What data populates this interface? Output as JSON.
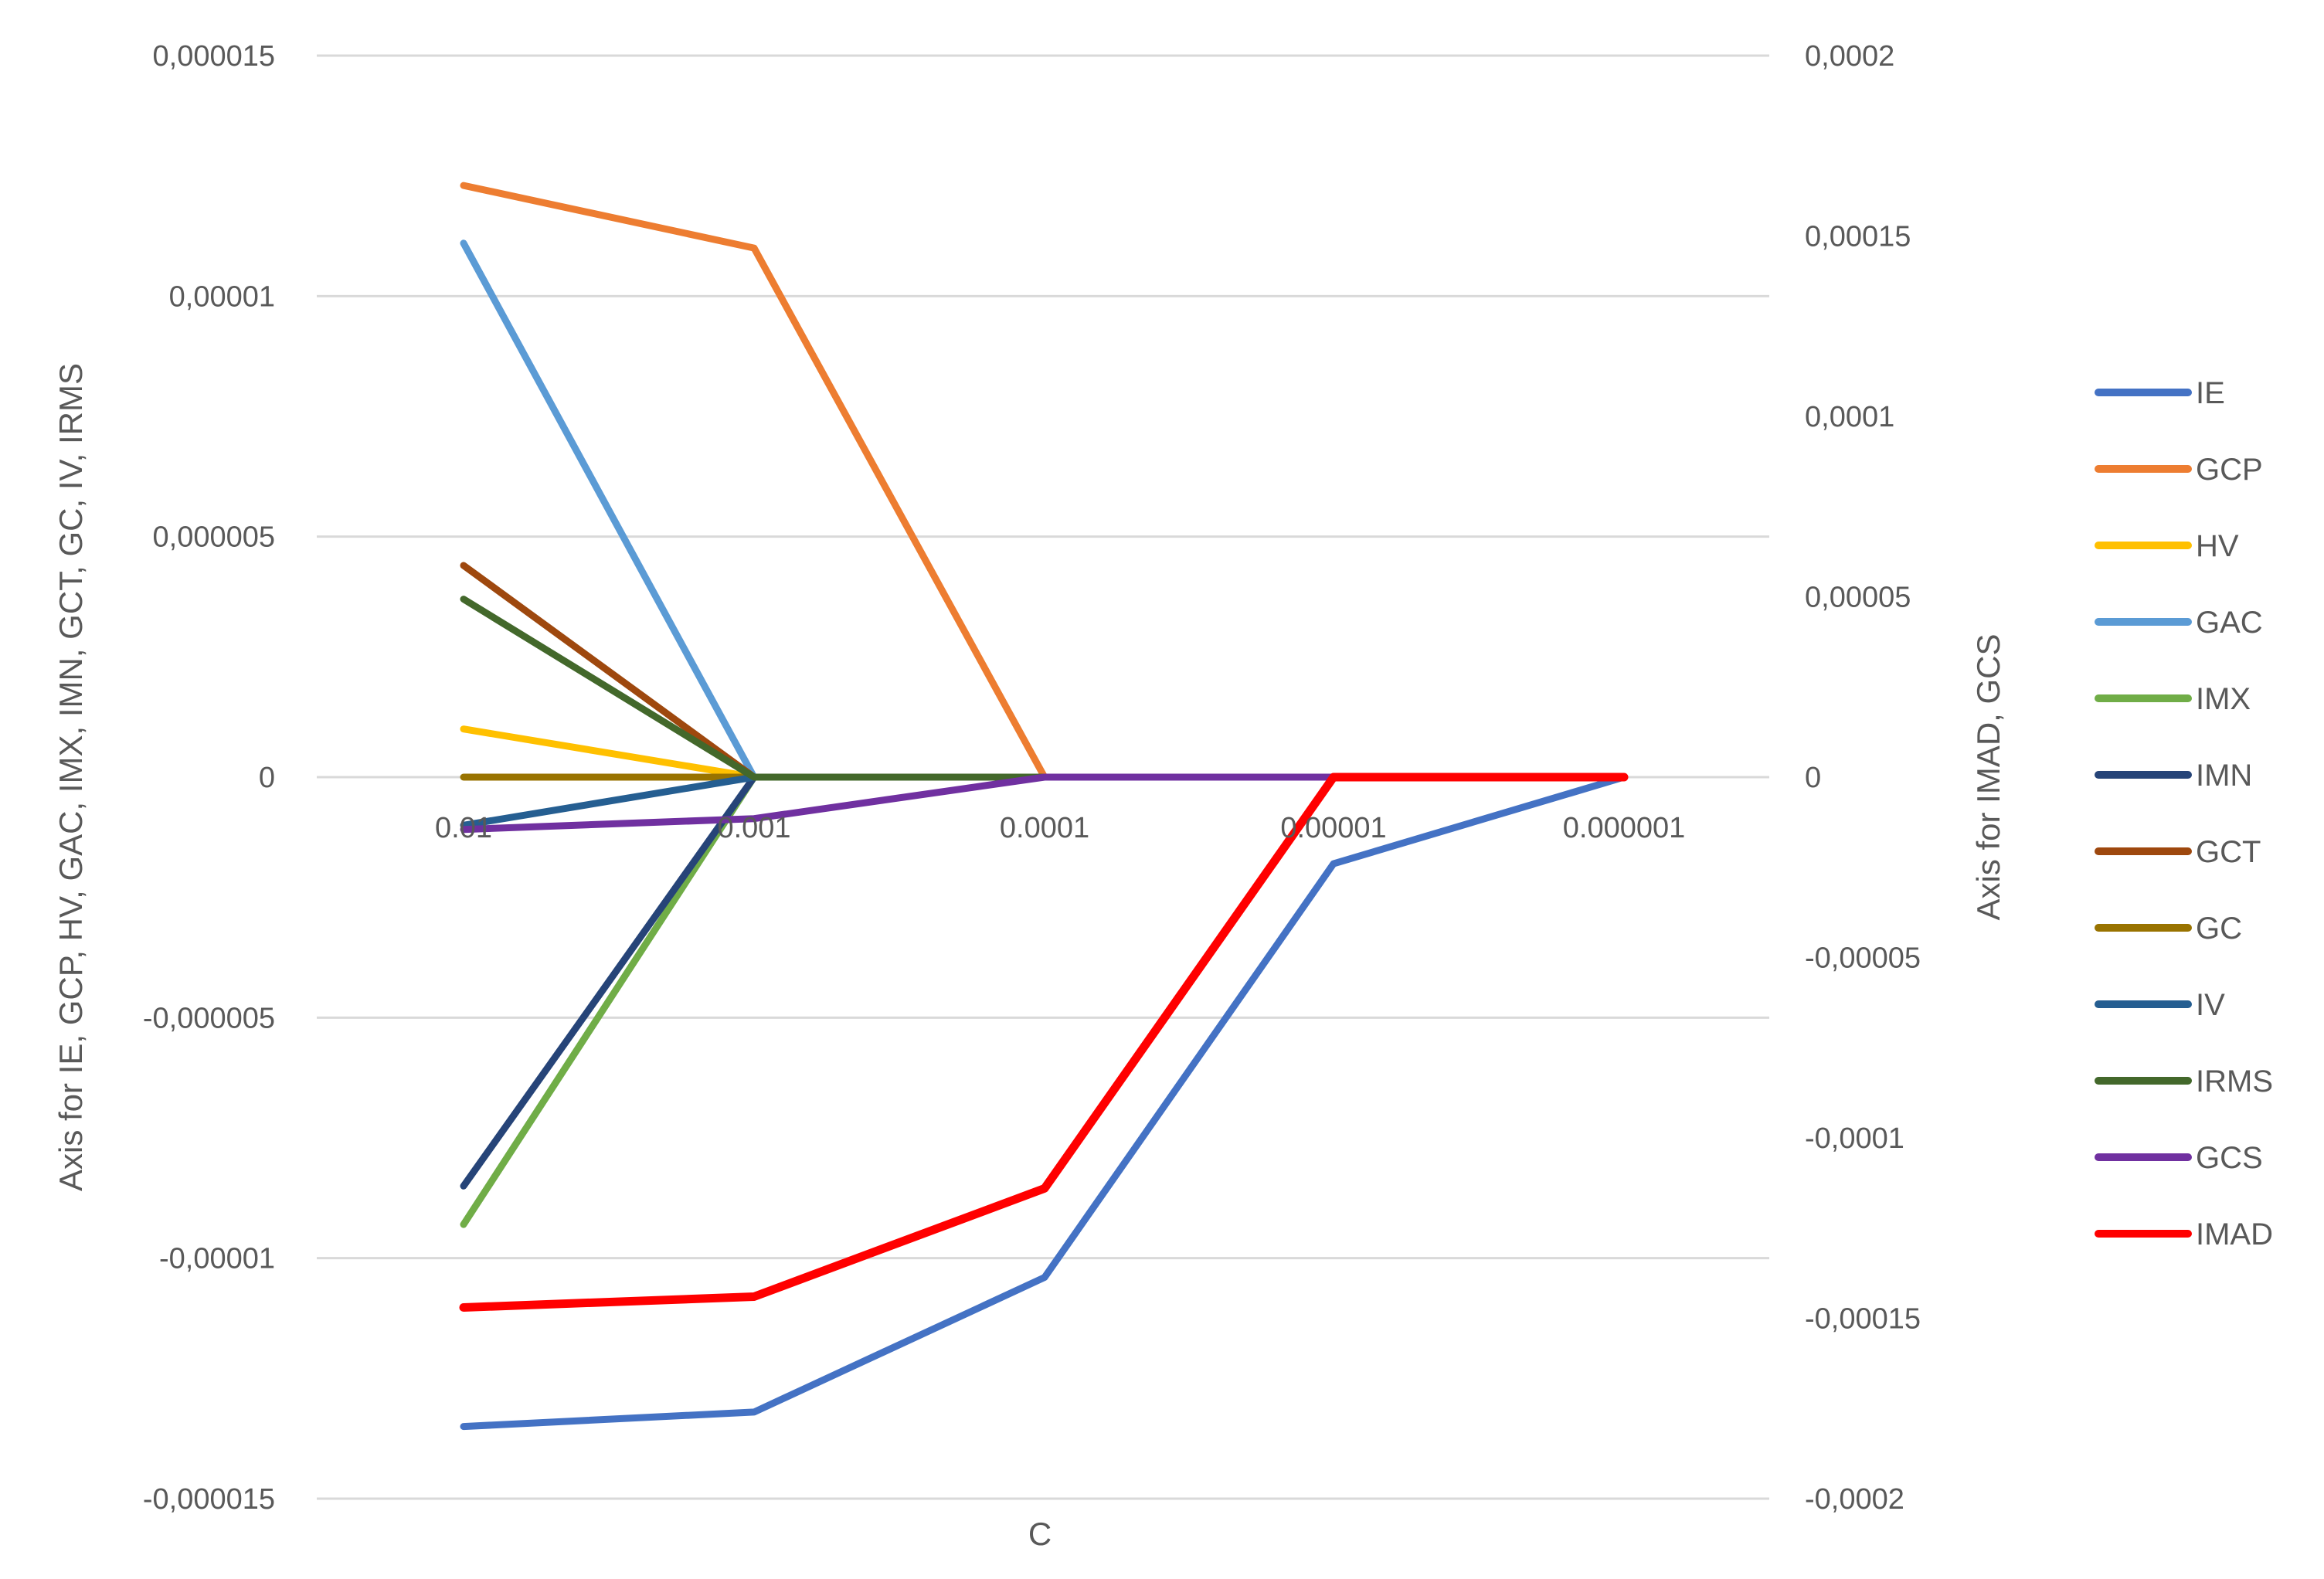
{
  "chart_data": {
    "type": "line",
    "title": "",
    "xlabel": "C",
    "ylabel_left": "Axis for IE, GCP, HV, GAC, IMX, IMN, GCT, GC, IV, IRMS",
    "ylabel_right": "Axis for IMAD, GCS",
    "categories": [
      "0.01",
      "0.001",
      "0.0001",
      "0.00001",
      "0.000001"
    ],
    "y_left": {
      "min": -1.5e-05,
      "max": 1.5e-05,
      "ticks": [
        1.5e-05,
        1e-05,
        5e-06,
        0,
        -5e-06,
        -1e-05,
        -1.5e-05
      ],
      "tick_labels": [
        "0,000015",
        "0,00001",
        "0,000005",
        "0",
        "-0,000005",
        "-0,00001",
        "-0,000015"
      ]
    },
    "y_right": {
      "min": -0.0002,
      "max": 0.0002,
      "ticks": [
        0.0002,
        0.00015,
        0.0001,
        5e-05,
        0,
        -5e-05,
        -0.0001,
        -0.00015,
        -0.0002
      ],
      "tick_labels": [
        "0,0002",
        "0,00015",
        "0,0001",
        "0,00005",
        "0",
        "-0,00005",
        "-0,0001",
        "-0,00015",
        "-0,0002"
      ]
    },
    "grid": true,
    "legend_position": "right",
    "series": [
      {
        "name": "IE",
        "axis": "left",
        "color": "#4472C4",
        "values": [
          -1.35e-05,
          -1.32e-05,
          -1.04e-05,
          -1.8e-06,
          0
        ]
      },
      {
        "name": "GCP",
        "axis": "left",
        "color": "#ED7D31",
        "values": [
          1.23e-05,
          1.1e-05,
          0,
          0,
          0
        ]
      },
      {
        "name": "HV",
        "axis": "left",
        "color": "#FFC000",
        "values": [
          1e-06,
          0,
          0,
          0,
          0
        ]
      },
      {
        "name": "GAC",
        "axis": "left",
        "color": "#5B9BD5",
        "values": [
          1.11e-05,
          0,
          0,
          0,
          0
        ]
      },
      {
        "name": "IMX",
        "axis": "left",
        "color": "#70AD47",
        "values": [
          -9.3e-06,
          0,
          0,
          0,
          0
        ]
      },
      {
        "name": "IMN",
        "axis": "left",
        "color": "#264478",
        "values": [
          -8.5e-06,
          0,
          0,
          0,
          0
        ]
      },
      {
        "name": "GCT",
        "axis": "left",
        "color": "#9E480E",
        "values": [
          4.4e-06,
          0,
          0,
          0,
          0
        ]
      },
      {
        "name": "GC",
        "axis": "left",
        "color": "#997300",
        "values": [
          0,
          0,
          0,
          0,
          0
        ]
      },
      {
        "name": "IV",
        "axis": "left",
        "color": "#255E91",
        "values": [
          -1e-06,
          0,
          0,
          0,
          0
        ]
      },
      {
        "name": "IRMS",
        "axis": "left",
        "color": "#43682B",
        "values": [
          3.7e-06,
          0,
          0,
          0,
          0
        ]
      },
      {
        "name": "GCS",
        "axis": "right",
        "color": "#7030A0",
        "values": [
          -1.45e-05,
          -1.15e-05,
          0,
          0,
          0
        ]
      },
      {
        "name": "IMAD",
        "axis": "right",
        "color": "#FF0000",
        "values": [
          -0.000147,
          -0.000144,
          -0.000114,
          0,
          0
        ]
      }
    ]
  }
}
